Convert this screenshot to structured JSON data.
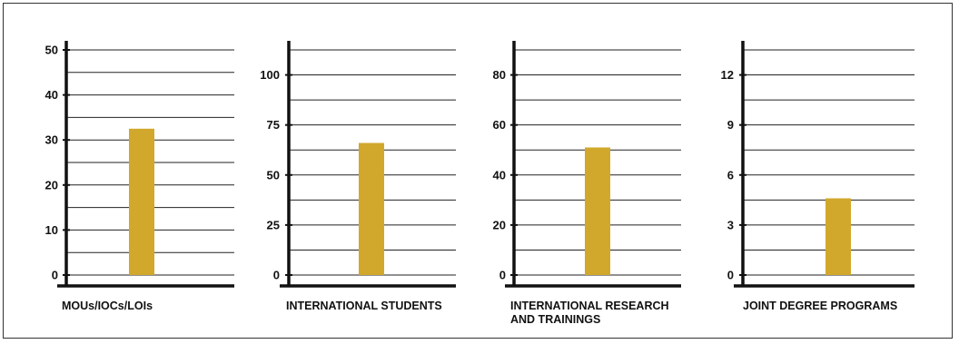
{
  "colors": {
    "bar": "#D1A82B",
    "axis": "#111111",
    "grid": "#222222",
    "frame": "#333333"
  },
  "chart_data": [
    {
      "type": "bar",
      "title": "",
      "label_lines": [
        "MOUs/IOCs/LOIs"
      ],
      "categories": [
        ""
      ],
      "values": [
        32.5
      ],
      "ylim": [
        0,
        50
      ],
      "yticks": [
        0,
        10,
        20,
        30,
        40,
        50
      ],
      "grid_step": 5,
      "grid": true
    },
    {
      "type": "bar",
      "title": "",
      "label_lines": [
        "INTERNATIONAL STUDENTS"
      ],
      "categories": [
        ""
      ],
      "values": [
        66
      ],
      "ylim": [
        0,
        112.5
      ],
      "yticks": [
        0,
        25,
        50,
        75,
        100
      ],
      "grid_step": 12.5,
      "grid": true
    },
    {
      "type": "bar",
      "title": "",
      "label_lines": [
        "INTERNATIONAL RESEARCH",
        "AND TRAININGS"
      ],
      "categories": [
        ""
      ],
      "values": [
        51
      ],
      "ylim": [
        0,
        90
      ],
      "yticks": [
        0,
        20,
        40,
        60,
        80
      ],
      "grid_step": 10,
      "grid": true
    },
    {
      "type": "bar",
      "title": "",
      "label_lines": [
        "JOINT DEGREE PROGRAMS"
      ],
      "categories": [
        ""
      ],
      "values": [
        4.6
      ],
      "ylim": [
        0,
        13.5
      ],
      "yticks": [
        0,
        3,
        6,
        9,
        12
      ],
      "grid_step": 1.5,
      "grid": true
    }
  ]
}
